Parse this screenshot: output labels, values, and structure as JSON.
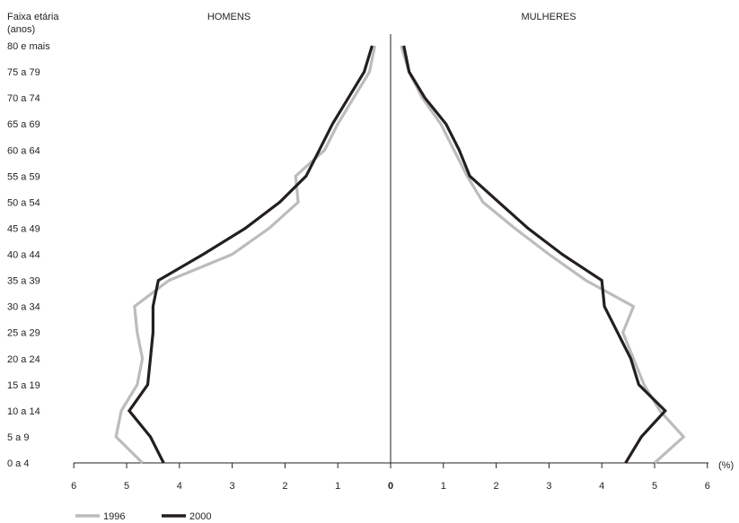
{
  "chart_data": {
    "type": "line",
    "y_title_line1": "Faixa etária",
    "y_title_line2": "(anos)",
    "left_title": "HOMENS",
    "right_title": "MULHERES",
    "x_unit": "(%)",
    "age_groups": [
      "0 a 4",
      "5 a 9",
      "10 a 14",
      "15 a 19",
      "20 a 24",
      "25 a 29",
      "30 a 34",
      "35 a 39",
      "40 a 44",
      "45 a 49",
      "50 a 54",
      "55 a 59",
      "60 a 64",
      "65 a 69",
      "70 a 74",
      "75 a 79",
      "80 e mais"
    ],
    "x_ticks_left": [
      "6",
      "5",
      "4",
      "3",
      "2",
      "1"
    ],
    "x_tick_zero": "0",
    "x_ticks_right": [
      "1",
      "2",
      "3",
      "4",
      "5",
      "6"
    ],
    "xlim": [
      -6,
      6
    ],
    "series": [
      {
        "name": "1996",
        "color": "#bcbcbc",
        "men": [
          4.7,
          5.2,
          5.1,
          4.8,
          4.7,
          4.8,
          4.85,
          4.2,
          3.0,
          2.3,
          1.75,
          1.8,
          1.25,
          1.0,
          0.7,
          0.4,
          0.3
        ],
        "women": [
          5.0,
          5.55,
          5.1,
          4.8,
          4.6,
          4.4,
          4.6,
          3.7,
          3.0,
          2.35,
          1.75,
          1.45,
          1.2,
          0.95,
          0.6,
          0.35,
          0.2
        ]
      },
      {
        "name": "2000",
        "color": "#231f20",
        "men": [
          4.3,
          4.55,
          4.95,
          4.6,
          4.55,
          4.5,
          4.5,
          4.4,
          3.55,
          2.75,
          2.1,
          1.6,
          1.35,
          1.1,
          0.8,
          0.5,
          0.35
        ],
        "women": [
          4.45,
          4.75,
          5.2,
          4.7,
          4.55,
          4.3,
          4.05,
          4.0,
          3.25,
          2.6,
          2.05,
          1.5,
          1.3,
          1.05,
          0.65,
          0.35,
          0.25
        ]
      }
    ]
  }
}
